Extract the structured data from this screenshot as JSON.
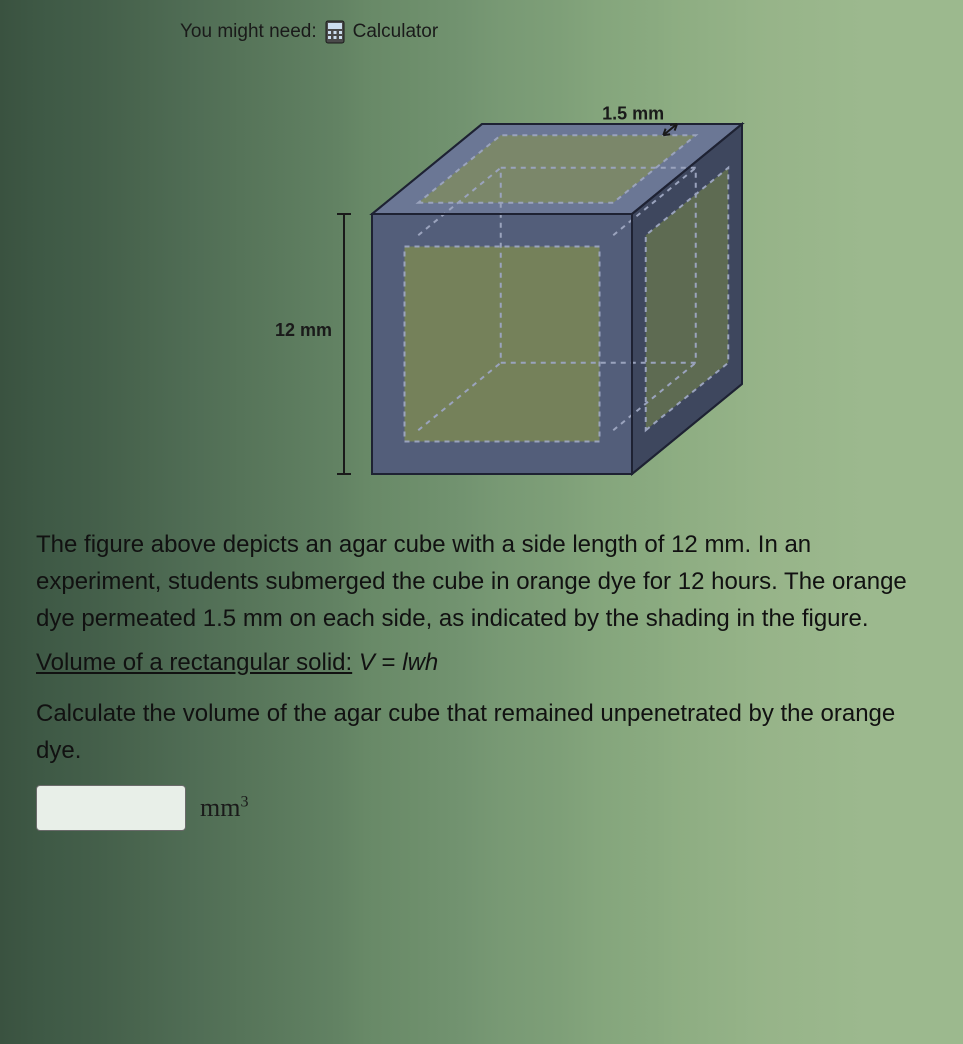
{
  "hint": {
    "prefix": "You might need:",
    "tool_label": "Calculator",
    "icon_name": "calculator-icon"
  },
  "figure": {
    "type": "diagram",
    "outer_side_mm": 12,
    "permeation_mm": 1.5,
    "label_outer": "12 mm",
    "label_inner": "1.5 mm",
    "colors": {
      "cube_fill": "#535e7a",
      "cube_fill_light": "#6b7795",
      "cube_fill_dark": "#3e475e",
      "cube_edge": "#1e2233",
      "dashed": "#9aa3bd",
      "bracket": "#1a1a1a",
      "label_text": "#1a1a1a",
      "hollow": "none"
    },
    "stroke_width": 2,
    "dash_pattern": "5,5",
    "label_fontsize": 18
  },
  "text": {
    "para1_a": "The figure above depicts an agar cube with a side length of ",
    "val_12": "12 mm",
    "para1_b": ". In an experiment, students submerged the cube in orange dye for ",
    "val_12h": "12",
    "para1_c": " hours. The orange dye permeated ",
    "val_15": "1.5 mm",
    "para1_d": " on each side, as indicated by the shading in the figure.",
    "formula_label": "Volume of a rectangular solid:",
    "formula_V": "V",
    "formula_eq": " = ",
    "formula_lwh": "lwh",
    "para3": "Calculate the volume of the agar cube that remained unpenetrated by the orange dye.",
    "unit_base": "mm",
    "unit_exp": "3"
  },
  "input": {
    "value": "",
    "placeholder": ""
  }
}
